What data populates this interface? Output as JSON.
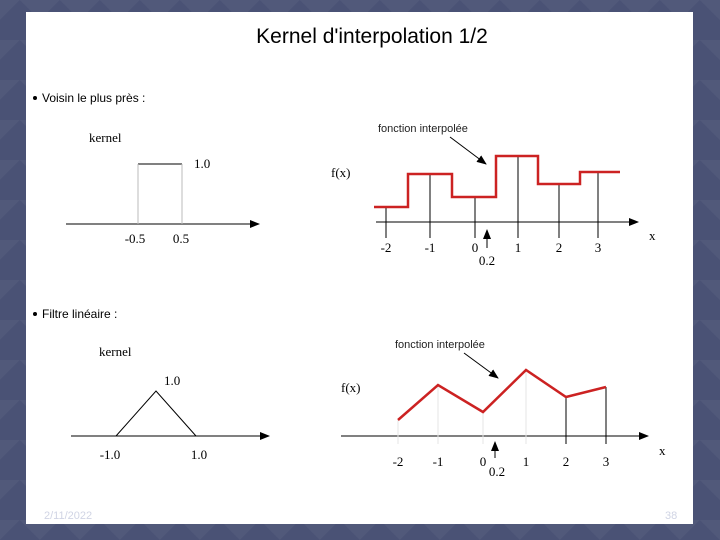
{
  "title": "Kernel d'interpolation  1/2",
  "footer": {
    "date": "2/11/2022",
    "page": "38"
  },
  "sections": [
    {
      "bullet": "Voisin le plus près :",
      "kernel_label": "kernel",
      "kernel_value": "1.0",
      "kernel_ticks": [
        "-0.5",
        "0.5"
      ],
      "fx_label": "f(x)",
      "x_label": "x",
      "annotation": "fonction interpolée",
      "x_ticks": [
        "-2",
        "-1",
        "0",
        "1",
        "2",
        "3"
      ],
      "marker_label": "0.2"
    },
    {
      "bullet": "Filtre linéaire :",
      "kernel_label": "kernel",
      "kernel_value": "1.0",
      "kernel_ticks": [
        "-1.0",
        "1.0"
      ],
      "fx_label": "f(x)",
      "x_label": "x",
      "annotation": "fonction interpolée",
      "x_ticks": [
        "-2",
        "-1",
        "0",
        "1",
        "2",
        "3"
      ],
      "marker_label": "0.2"
    }
  ],
  "colors": {
    "curve": "#cc2222",
    "axis": "#000000"
  }
}
